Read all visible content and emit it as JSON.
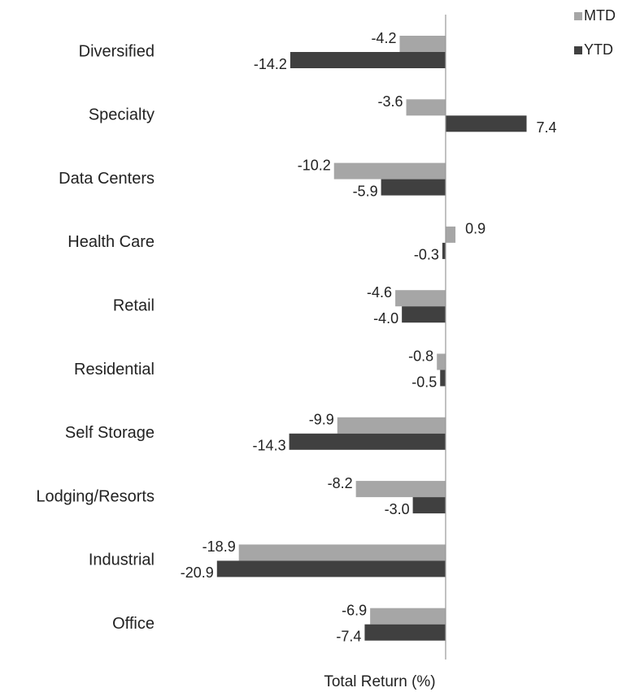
{
  "chart_data": {
    "type": "hbar",
    "x_label": "Total Return (%)",
    "categories": [
      "Diversified",
      "Specialty",
      "Data Centers",
      "Health Care",
      "Retail",
      "Residential",
      "Self Storage",
      "Lodging/Resorts",
      "Industrial",
      "Office"
    ],
    "series": [
      {
        "name": "MTD",
        "color": "#a6a6a6",
        "values": [
          -4.2,
          -3.6,
          -10.2,
          0.9,
          -4.6,
          -0.8,
          -9.9,
          -8.2,
          -18.9,
          -6.9
        ],
        "value_labels": [
          "-4.2",
          "-3.6",
          "-10.2",
          "0.9",
          "-4.6",
          "-0.8",
          "-9.9",
          "-8.2",
          "-18.9",
          "-6.9"
        ]
      },
      {
        "name": "YTD",
        "color": "#404040",
        "values": [
          -14.2,
          7.4,
          -5.9,
          -0.3,
          -4.0,
          -0.5,
          -14.3,
          -3.0,
          -20.9,
          -7.4
        ],
        "value_labels": [
          "-14.2",
          "7.4",
          "-5.9",
          "-0.3",
          "-4.0",
          "-0.5",
          "-14.3",
          "-3.0",
          "-20.9",
          "-7.4"
        ]
      }
    ],
    "xlim": [
      -22,
      8
    ],
    "legend": "top-right"
  }
}
